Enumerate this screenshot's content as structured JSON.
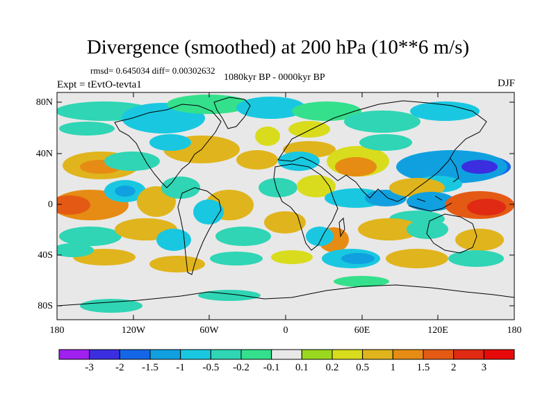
{
  "title": "Divergence (smoothed) at 200 hPa (10**6 m/s)",
  "stats": "rmsd= 0.645034 diff= 0.00302632",
  "period": "1080kyr BP - 0000kyr BP",
  "experiment": "Expt = tEvtO-tevta1",
  "season": "DJF",
  "axes": {
    "lat_labels": [
      "80N",
      "40N",
      "0",
      "40S",
      "80S"
    ],
    "lon_labels": [
      "180",
      "120W",
      "60W",
      "0",
      "60E",
      "120E",
      "180"
    ]
  },
  "colorbar": {
    "levels": [
      "-3",
      "-2",
      "-1.5",
      "-1",
      "-0.5",
      "-0.2",
      "-0.1",
      "0.1",
      "0.2",
      "0.5",
      "1",
      "1.5",
      "2",
      "3"
    ],
    "colors": [
      "#a020f0",
      "#3b2ee0",
      "#1466e6",
      "#10a0e0",
      "#19c8e0",
      "#2fd5b4",
      "#35e08c",
      "#e8e8e8",
      "#9ad820",
      "#d8dc1c",
      "#e0b41c",
      "#e68c14",
      "#e45a14",
      "#e02a14",
      "#e80a0a"
    ]
  },
  "field_colors": {
    "background": "#e8e8e8",
    "neg_weak": "#35e08c",
    "neg_mod": "#2fd5b4",
    "neg": "#19c8e0",
    "neg_strong": "#10a0e0",
    "neg_vstrong": "#1466e6",
    "neg_max": "#3b2ee0",
    "pos_weak": "#9ad820",
    "pos_mod": "#d8dc1c",
    "pos": "#e0b41c",
    "pos_strong": "#e68c14",
    "pos_vstrong": "#e45a14",
    "pos_max": "#e02a14"
  }
}
